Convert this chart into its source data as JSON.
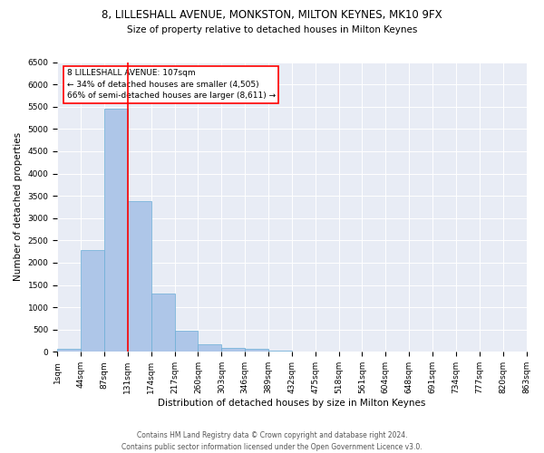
{
  "title1": "8, LILLESHALL AVENUE, MONKSTON, MILTON KEYNES, MK10 9FX",
  "title2": "Size of property relative to detached houses in Milton Keynes",
  "xlabel": "Distribution of detached houses by size in Milton Keynes",
  "ylabel": "Number of detached properties",
  "annotation_title": "8 LILLESHALL AVENUE: 107sqm",
  "annotation_line1": "← 34% of detached houses are smaller (4,505)",
  "annotation_line2": "66% of semi-detached houses are larger (8,611) →",
  "footer1": "Contains HM Land Registry data © Crown copyright and database right 2024.",
  "footer2": "Contains public sector information licensed under the Open Government Licence v3.0.",
  "bar_values": [
    70,
    2280,
    5450,
    3390,
    1310,
    480,
    175,
    95,
    65,
    35,
    15,
    10,
    5,
    5,
    3,
    2,
    2,
    1,
    1,
    1
  ],
  "bin_labels": [
    "1sqm",
    "44sqm",
    "87sqm",
    "131sqm",
    "174sqm",
    "217sqm",
    "260sqm",
    "303sqm",
    "346sqm",
    "389sqm",
    "432sqm",
    "475sqm",
    "518sqm",
    "561sqm",
    "604sqm",
    "648sqm",
    "691sqm",
    "734sqm",
    "777sqm",
    "820sqm",
    "863sqm"
  ],
  "bar_color": "#aec6e8",
  "bar_edge_color": "#6aaed6",
  "vline_x": 2.5,
  "vline_color": "red",
  "annotation_box_color": "red",
  "background_color": "#e8ecf5",
  "ylim": [
    0,
    6500
  ],
  "yticks": [
    0,
    500,
    1000,
    1500,
    2000,
    2500,
    3000,
    3500,
    4000,
    4500,
    5000,
    5500,
    6000,
    6500
  ],
  "title1_fontsize": 8.5,
  "title2_fontsize": 7.5,
  "axis_label_fontsize": 7.5,
  "tick_fontsize": 6.5,
  "annotation_fontsize": 6.5,
  "footer_fontsize": 5.5
}
